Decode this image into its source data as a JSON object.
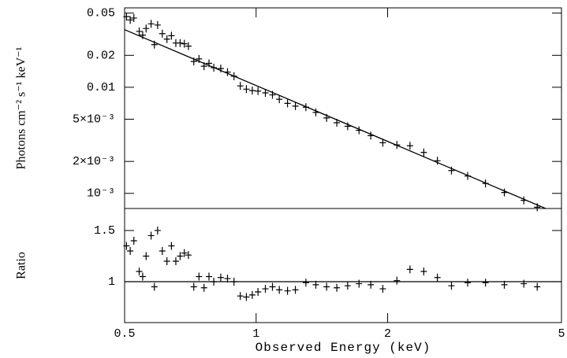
{
  "chart_data": [
    {
      "type": "scatter",
      "xlog": true,
      "ylog": true,
      "y_label": "Photons cm⁻² s⁻¹ keV⁻¹",
      "xlim": [
        0.5,
        5
      ],
      "ylim": [
        0.00072,
        0.056
      ],
      "yticks": [
        0.05,
        0.02,
        0.01,
        {
          "value": 0.005,
          "label": "5×10⁻³"
        },
        {
          "value": 0.002,
          "label": "2×10⁻³"
        },
        {
          "value": 0.001,
          "label": "10⁻³"
        }
      ],
      "series": [
        {
          "mode": "markers",
          "color": "#000000",
          "x": [
            0.505,
            0.515,
            0.525,
            0.54,
            0.55,
            0.56,
            0.575,
            0.585,
            0.595,
            0.61,
            0.625,
            0.64,
            0.655,
            0.67,
            0.685,
            0.7,
            0.72,
            0.74,
            0.76,
            0.78,
            0.8,
            0.83,
            0.86,
            0.89,
            0.92,
            0.95,
            0.98,
            1.01,
            1.05,
            1.09,
            1.13,
            1.18,
            1.23,
            1.3,
            1.37,
            1.45,
            1.53,
            1.62,
            1.72,
            1.83,
            1.95,
            2.1,
            2.25,
            2.42,
            2.6,
            2.8,
            3.05,
            3.35,
            3.7,
            4.1,
            4.4
          ],
          "values": [
            0.0463,
            0.0431,
            0.0449,
            0.0336,
            0.031,
            0.0358,
            0.0396,
            0.0252,
            0.0386,
            0.032,
            0.0284,
            0.0306,
            0.0261,
            0.0261,
            0.0257,
            0.0244,
            0.0175,
            0.0185,
            0.0158,
            0.0168,
            0.0153,
            0.015,
            0.0139,
            0.0127,
            0.0103,
            0.0096,
            0.0093,
            0.0092,
            0.00886,
            0.00848,
            0.00771,
            0.00705,
            0.00664,
            0.00649,
            0.00579,
            0.00514,
            0.00463,
            0.00429,
            0.00393,
            0.0035,
            0.003,
            0.00286,
            0.00281,
            0.00243,
            0.00203,
            0.00164,
            0.00146,
            0.00124,
            0.00102,
            0.00086,
            0.00074
          ]
        },
        {
          "mode": "line",
          "color": "#000000",
          "x": [
            0.5,
            4.6
          ],
          "values": [
            0.0349,
            0.00072
          ]
        }
      ]
    },
    {
      "type": "scatter",
      "xlog": true,
      "y_label": "Ratio",
      "x_label": "Observed Energy (keV)",
      "xlim": [
        0.5,
        5
      ],
      "ylim": [
        0.6,
        1.715
      ],
      "xticks": [
        0.5,
        1,
        2,
        5
      ],
      "yticks": [
        1.5,
        1
      ],
      "series": [
        {
          "mode": "markers",
          "color": "#000000",
          "x": [
            0.505,
            0.515,
            0.525,
            0.54,
            0.55,
            0.56,
            0.575,
            0.585,
            0.595,
            0.61,
            0.625,
            0.64,
            0.655,
            0.67,
            0.685,
            0.7,
            0.72,
            0.74,
            0.76,
            0.78,
            0.8,
            0.83,
            0.86,
            0.89,
            0.92,
            0.95,
            0.98,
            1.01,
            1.05,
            1.09,
            1.13,
            1.18,
            1.23,
            1.3,
            1.37,
            1.45,
            1.53,
            1.62,
            1.72,
            1.83,
            1.95,
            2.1,
            2.25,
            2.42,
            2.6,
            2.8,
            3.05,
            3.35,
            3.7,
            4.1,
            4.4
          ],
          "values": [
            1.35,
            1.3,
            1.4,
            1.1,
            1.05,
            1.25,
            1.45,
            0.95,
            1.5,
            1.3,
            1.2,
            1.35,
            1.2,
            1.25,
            1.28,
            1.26,
            0.95,
            1.05,
            0.94,
            1.05,
            1.0,
            1.04,
            1.03,
            1.0,
            0.86,
            0.85,
            0.87,
            0.9,
            0.93,
            0.95,
            0.92,
            0.91,
            0.92,
            0.99,
            0.97,
            0.95,
            0.94,
            0.96,
            0.98,
            0.97,
            0.93,
            1.01,
            1.12,
            1.1,
            1.04,
            0.96,
            0.99,
            0.99,
            0.97,
            0.98,
            0.95
          ]
        },
        {
          "mode": "line",
          "color": "#000000",
          "x": [
            0.5,
            5
          ],
          "values": [
            1,
            1
          ]
        }
      ]
    }
  ]
}
